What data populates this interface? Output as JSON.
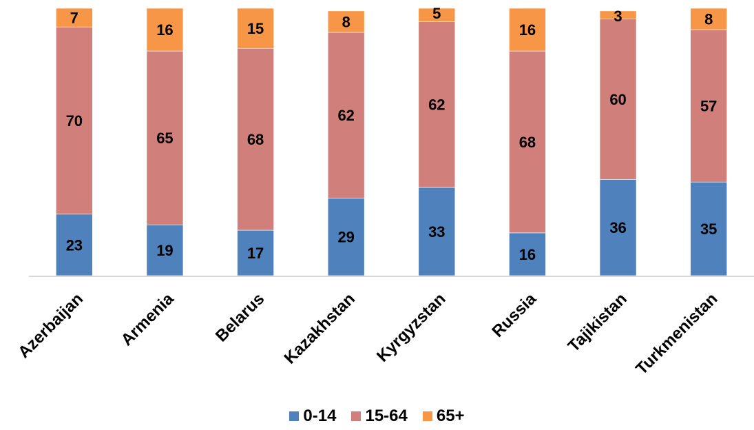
{
  "chart_data": {
    "type": "bar",
    "stacked": true,
    "categories": [
      "Azerbaijan",
      "Armenia",
      "Belarus",
      "Kazakhstan",
      "Kyrgyzstan",
      "Russia",
      "Tajikistan",
      "Turkmenistan"
    ],
    "series": [
      {
        "name": "0-14",
        "color": "#4f81bd",
        "values": [
          23,
          19,
          17,
          29,
          33,
          16,
          36,
          35
        ]
      },
      {
        "name": "15-64",
        "color": "#d17f7b",
        "values": [
          70,
          65,
          68,
          62,
          62,
          68,
          60,
          57
        ]
      },
      {
        "name": "65+",
        "color": "#f79646",
        "values": [
          7,
          16,
          15,
          8,
          5,
          16,
          3,
          8
        ]
      }
    ],
    "title": "",
    "xlabel": "",
    "ylabel": "",
    "ylim": [
      0,
      100
    ],
    "grid": false,
    "legend": "bottom"
  }
}
